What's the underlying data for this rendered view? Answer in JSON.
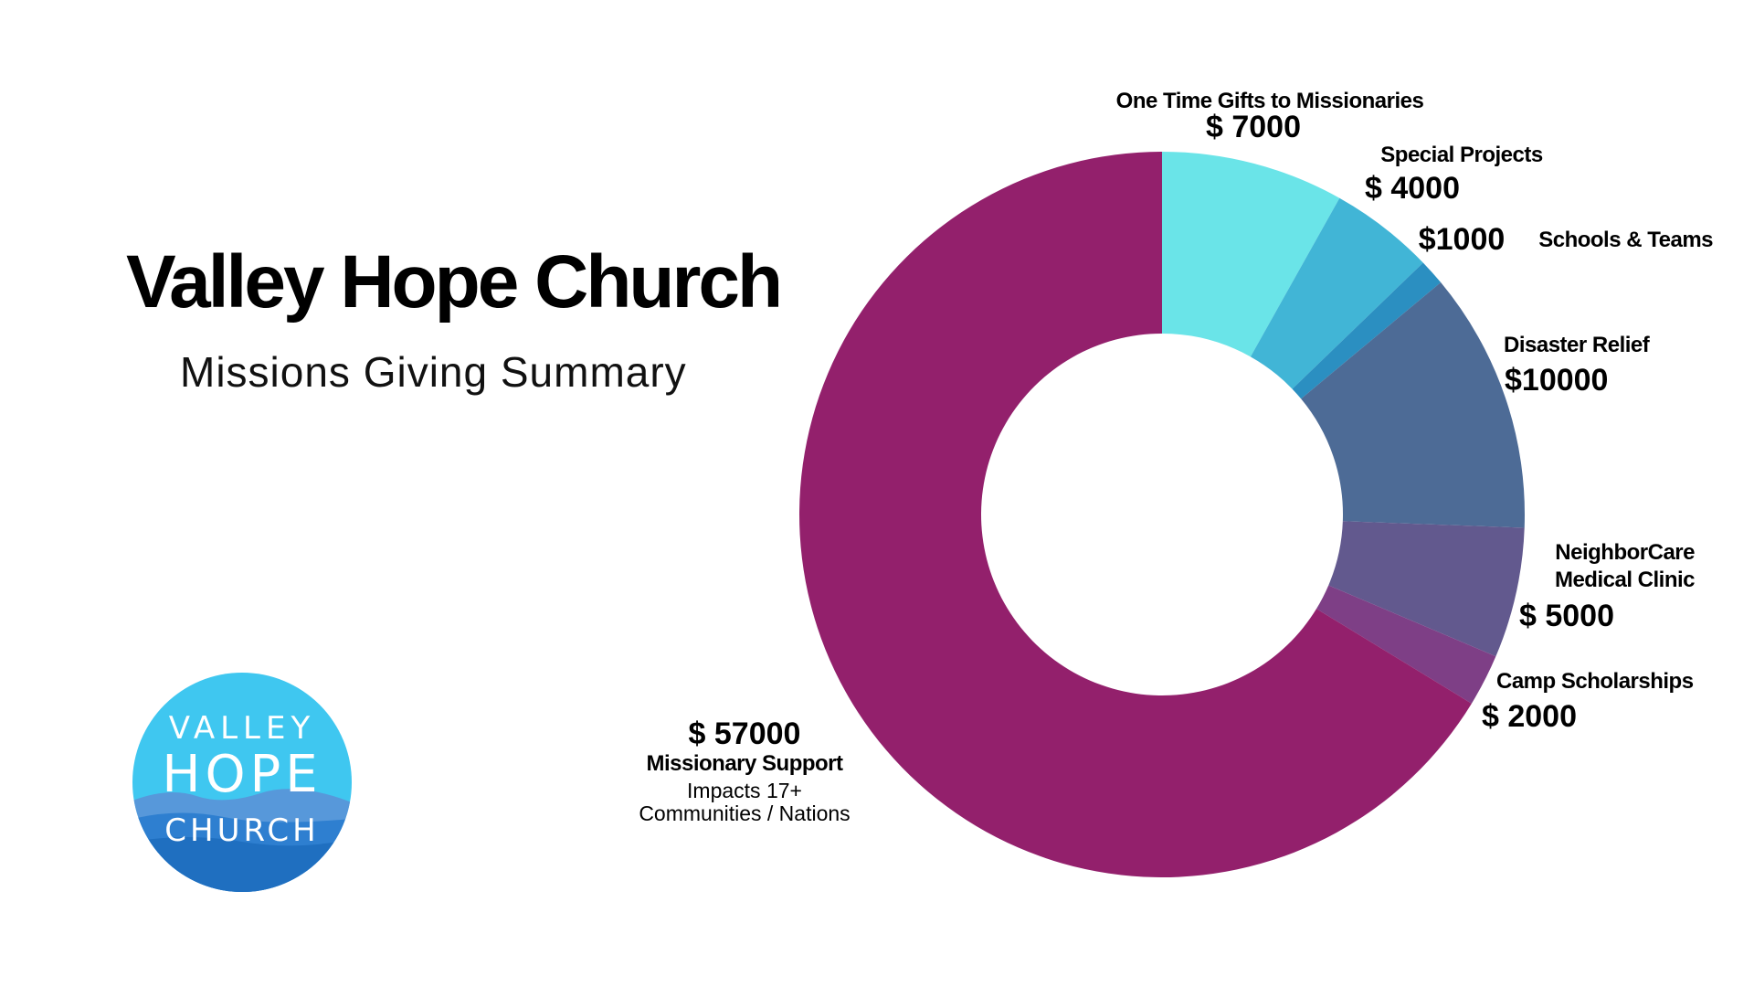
{
  "header": {
    "title": "Valley Hope Church",
    "subtitle": "Missions Giving Summary"
  },
  "logo": {
    "line1": "VALLEY",
    "line2": "HOPE",
    "line3": "CHURCH"
  },
  "chart_data": {
    "type": "pie",
    "donut": true,
    "title": "",
    "series": [
      {
        "name": "One Time Gifts to Missionaries",
        "value": 7000,
        "value_label": "$ 7000",
        "color": "#6ae4e8"
      },
      {
        "name": "Special Projects",
        "value": 4000,
        "value_label": "$ 4000",
        "color": "#41b5d6"
      },
      {
        "name": "Schools & Teams",
        "value": 1000,
        "value_label": "$1000",
        "color": "#2b8fc1"
      },
      {
        "name": "Disaster Relief",
        "value": 10000,
        "value_label": "$10000",
        "color": "#4d6b96"
      },
      {
        "name": "NeighborCare Medical Clinic",
        "value": 5000,
        "value_label": "$ 5000",
        "color": "#62598e"
      },
      {
        "name": "Camp Scholarships",
        "value": 2000,
        "value_label": "$ 2000",
        "color": "#7e3f86"
      },
      {
        "name": "Missionary Support",
        "value": 57000,
        "value_label": "$ 57000",
        "color": "#93206c",
        "note": [
          "Impacts 17+",
          "Communities / Nations"
        ]
      }
    ]
  }
}
